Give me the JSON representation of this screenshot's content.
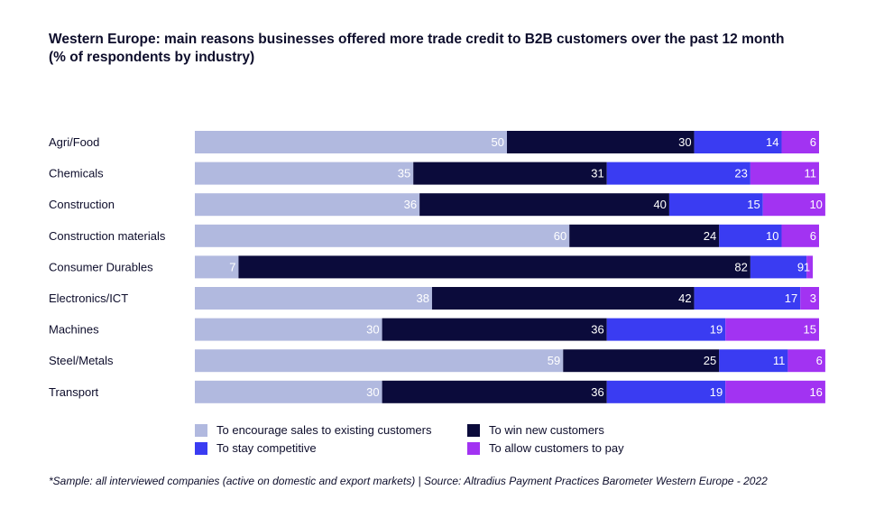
{
  "title_line1": "Western Europe: main reasons businesses offered more trade credit to B2B customers over the past 12 month",
  "title_line2": "(% of respondents by industry)",
  "footnote": "*Sample: all interviewed companies (active on domestic and export markets) | Source: Altradius Payment Practices Barometer Western Europe - 2022",
  "chart_data": {
    "type": "bar",
    "orientation": "horizontal",
    "stacked": true,
    "title": "Western Europe: main reasons businesses offered more trade credit to B2B customers over the past 12 month (% of respondents by industry)",
    "xlim": [
      0,
      100
    ],
    "categories": [
      "Agri/Food",
      "Chemicals",
      "Construction",
      "Construction materials",
      "Consumer Durables",
      "Electronics/ICT",
      "Machines",
      "Steel/Metals",
      "Transport"
    ],
    "series": [
      {
        "name": "To encourage sales to existing customers",
        "color": "#b1b9df",
        "label_color": "#ffffff",
        "values": [
          50,
          35,
          36,
          60,
          7,
          38,
          30,
          59,
          30
        ]
      },
      {
        "name": "To win new customers",
        "color": "#0b0b3b",
        "label_color": "#ffffff",
        "values": [
          30,
          31,
          40,
          24,
          82,
          42,
          36,
          25,
          36
        ]
      },
      {
        "name": "To stay competitive",
        "color": "#3a3cf2",
        "label_color": "#ffffff",
        "values": [
          14,
          23,
          15,
          10,
          9,
          17,
          19,
          11,
          19
        ]
      },
      {
        "name": "To allow customers to pay",
        "color": "#a233f2",
        "label_color": "#ffffff",
        "values": [
          6,
          11,
          10,
          6,
          1,
          3,
          15,
          6,
          16
        ]
      }
    ],
    "legend_position": "bottom"
  }
}
